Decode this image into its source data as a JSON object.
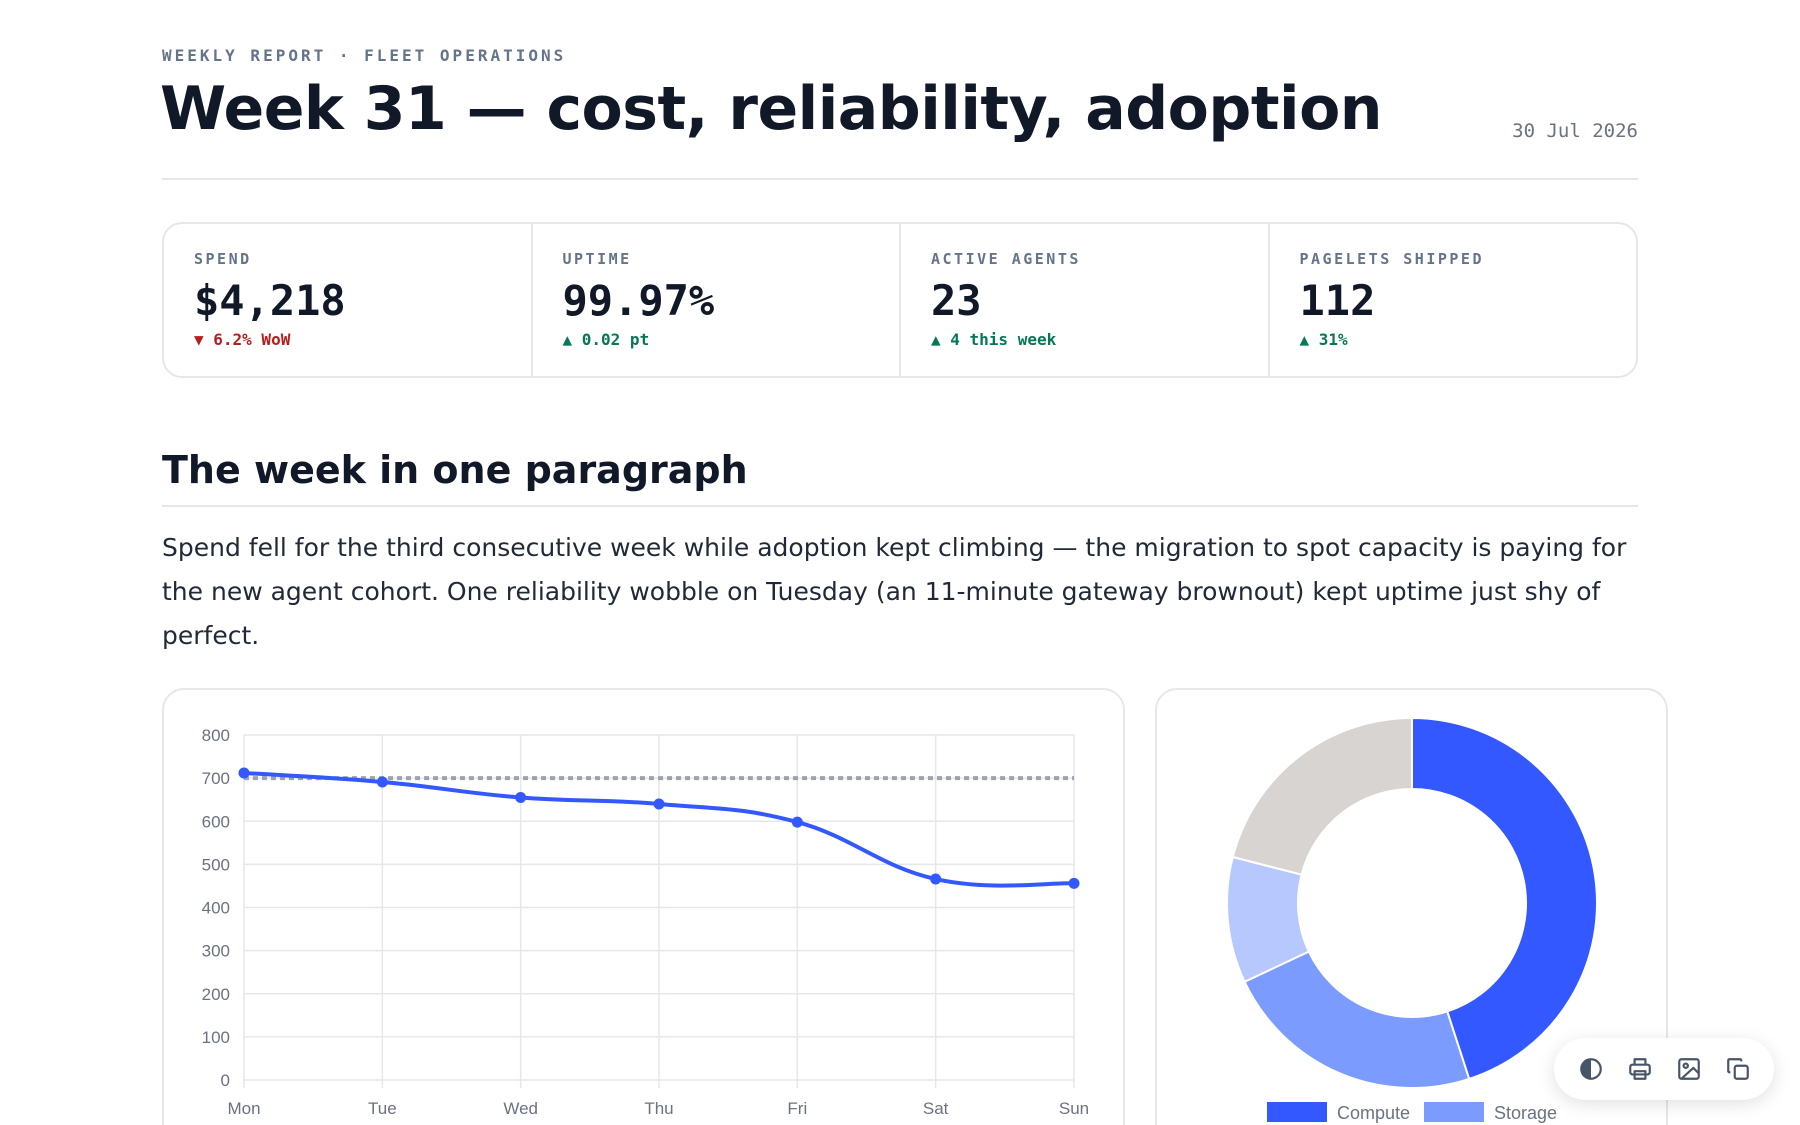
{
  "header": {
    "eyebrow": "WEEKLY REPORT · FLEET OPERATIONS",
    "title": "Week 31 — cost, reliability, adoption",
    "date": "30 Jul 2026"
  },
  "kpis": [
    {
      "label": "SPEND",
      "value": "$4,218",
      "delta": "▼ 6.2% WoW",
      "trend": "down"
    },
    {
      "label": "UPTIME",
      "value": "99.97%",
      "delta": "▲ 0.02 pt",
      "trend": "up"
    },
    {
      "label": "ACTIVE AGENTS",
      "value": "23",
      "delta": "▲ 4 this week",
      "trend": "up"
    },
    {
      "label": "PAGELETS SHIPPED",
      "value": "112",
      "delta": "▲ 31%",
      "trend": "up"
    }
  ],
  "summary": {
    "heading": "The week in one paragraph",
    "body": "Spend fell for the third consecutive week while adoption kept climbing — the migration to spot capacity is paying for the new agent cohort. One reliability wobble on Tuesday (an 11-minute gateway brownout) kept uptime just shy of perfect."
  },
  "chart_data": [
    {
      "type": "line",
      "categories": [
        "Mon",
        "Tue",
        "Wed",
        "Thu",
        "Fri",
        "Sat",
        "Sun"
      ],
      "series": [
        {
          "values": [
            712,
            691,
            655,
            640,
            598,
            466,
            456
          ],
          "color": "#3358ff",
          "style": "solid",
          "markers": true
        },
        {
          "values": [
            700,
            700,
            700,
            700,
            700,
            700,
            700
          ],
          "color": "#9ca3af",
          "style": "dotted",
          "markers": false
        }
      ],
      "yticks": [
        0,
        100,
        200,
        300,
        400,
        500,
        600,
        700,
        800
      ],
      "ylim": [
        0,
        800
      ],
      "grid": true
    },
    {
      "type": "pie",
      "variant": "donut",
      "slices": [
        {
          "name": "Compute",
          "value": 45,
          "color": "#3358ff"
        },
        {
          "name": "Storage",
          "value": 23,
          "color": "#7b9bff"
        },
        {
          "value": 11,
          "color": "#b7c7ff"
        },
        {
          "value": 21,
          "color": "#d7d4d2"
        }
      ],
      "legend": "bottom"
    }
  ],
  "toolbar": {
    "buttons": [
      {
        "icon": "contrast-icon"
      },
      {
        "icon": "print-icon"
      },
      {
        "icon": "image-icon"
      },
      {
        "icon": "copy-icon"
      }
    ]
  }
}
